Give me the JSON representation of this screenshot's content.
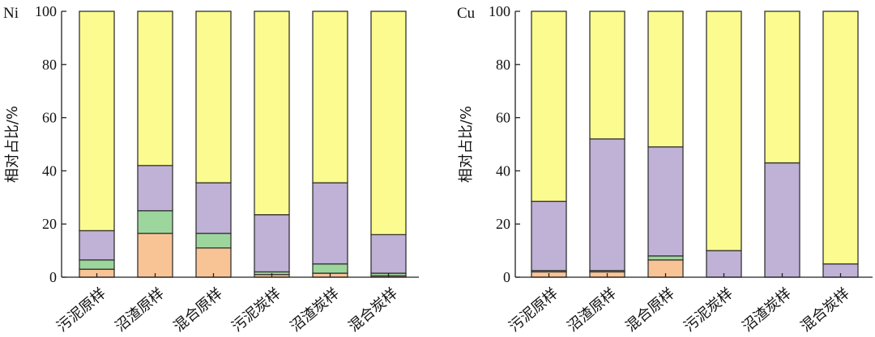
{
  "chart_data": [
    {
      "type": "bar",
      "stacked": true,
      "title": "Ni",
      "ylabel": "相对占比/%",
      "ylim": [
        0,
        100
      ],
      "yticks": [
        0,
        20,
        40,
        60,
        80,
        100
      ],
      "categories": [
        "污泥原样",
        "沼渣原样",
        "混合原样",
        "污泥炭样",
        "沼渣炭样",
        "混合炭样"
      ],
      "series": [
        {
          "color": "#f9c495",
          "values": [
            3,
            16.5,
            11,
            1,
            1.5,
            0.5
          ]
        },
        {
          "color": "#9dd69d",
          "values": [
            3.5,
            8.5,
            5.5,
            1,
            3.5,
            1
          ]
        },
        {
          "color": "#c0b1d6",
          "values": [
            11,
            17,
            19,
            21.5,
            30.5,
            14.5
          ]
        },
        {
          "color": "#fbfb8f",
          "values": [
            82.5,
            58,
            64.5,
            76.5,
            64.5,
            84
          ]
        }
      ]
    },
    {
      "type": "bar",
      "stacked": true,
      "title": "Cu",
      "ylabel": "相对占比/%",
      "ylim": [
        0,
        100
      ],
      "yticks": [
        0,
        20,
        40,
        60,
        80,
        100
      ],
      "categories": [
        "污泥原样",
        "沼渣原样",
        "混合原样",
        "污泥炭样",
        "沼渣炭样",
        "混合炭样"
      ],
      "series": [
        {
          "color": "#f9c495",
          "values": [
            2,
            2,
            6.5,
            0,
            0,
            0
          ]
        },
        {
          "color": "#9dd69d",
          "values": [
            0.5,
            0.5,
            1.5,
            0,
            0,
            0
          ]
        },
        {
          "color": "#c0b1d6",
          "values": [
            26,
            49.5,
            41,
            10,
            43,
            5
          ]
        },
        {
          "color": "#fbfb8f",
          "values": [
            71.5,
            48,
            51,
            90,
            57,
            95
          ]
        }
      ]
    }
  ]
}
